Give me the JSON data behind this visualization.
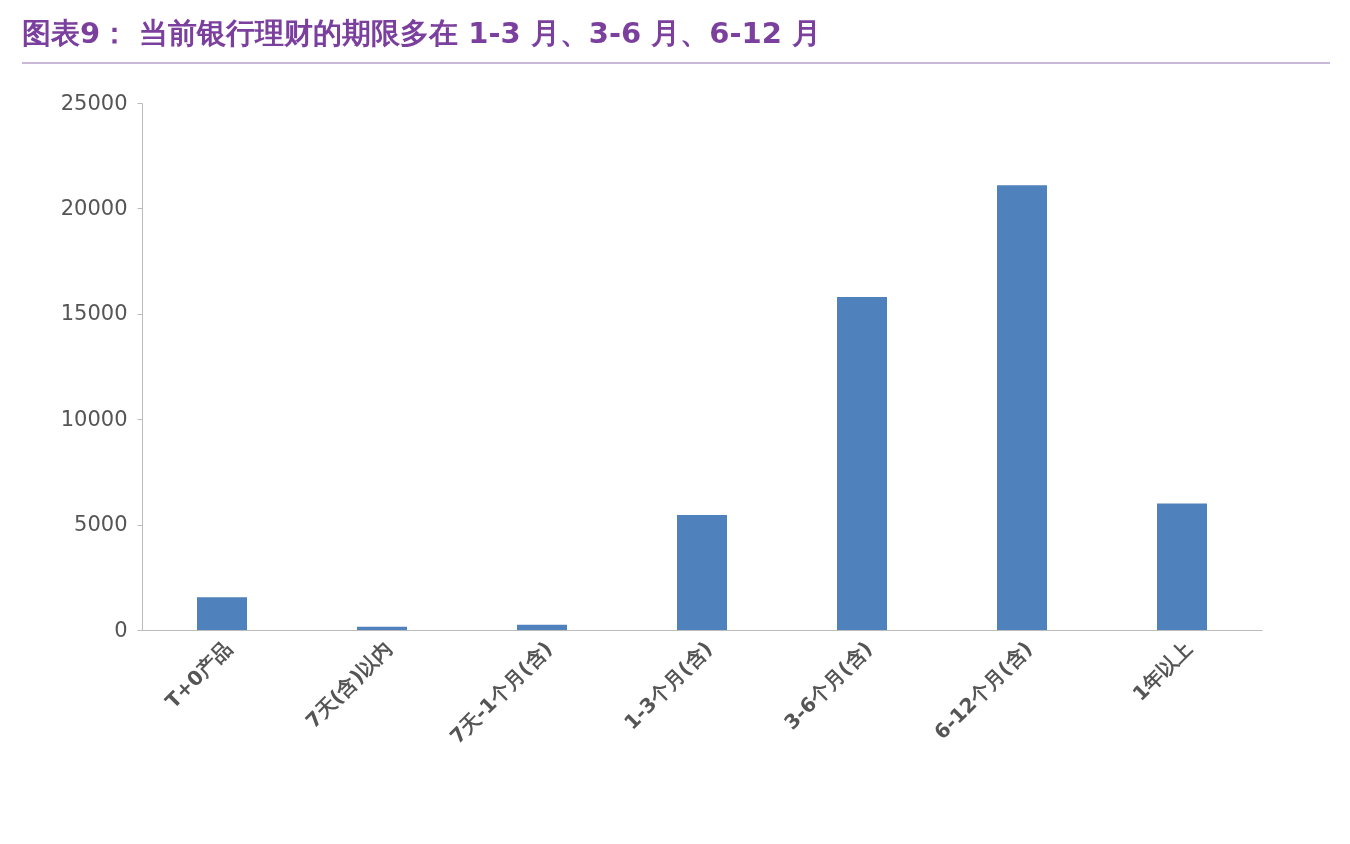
{
  "chart_data": {
    "type": "bar",
    "title": "图表9： 当前银行理财的期限多在 1-3 月、3-6 月、6-12 月",
    "categories": [
      "T+0产品",
      "7天(含)以内",
      "7天-1个月(含)",
      "1-3个月(含)",
      "3-6个月(含)",
      "6-12个月(含)",
      "1年以上"
    ],
    "values": [
      1550,
      150,
      250,
      5450,
      15800,
      21100,
      6000
    ],
    "color": "#4f81bd",
    "ylim": [
      0,
      25000
    ],
    "yticks": [
      0,
      5000,
      10000,
      15000,
      20000,
      25000
    ],
    "grid": false,
    "legend": false
  }
}
